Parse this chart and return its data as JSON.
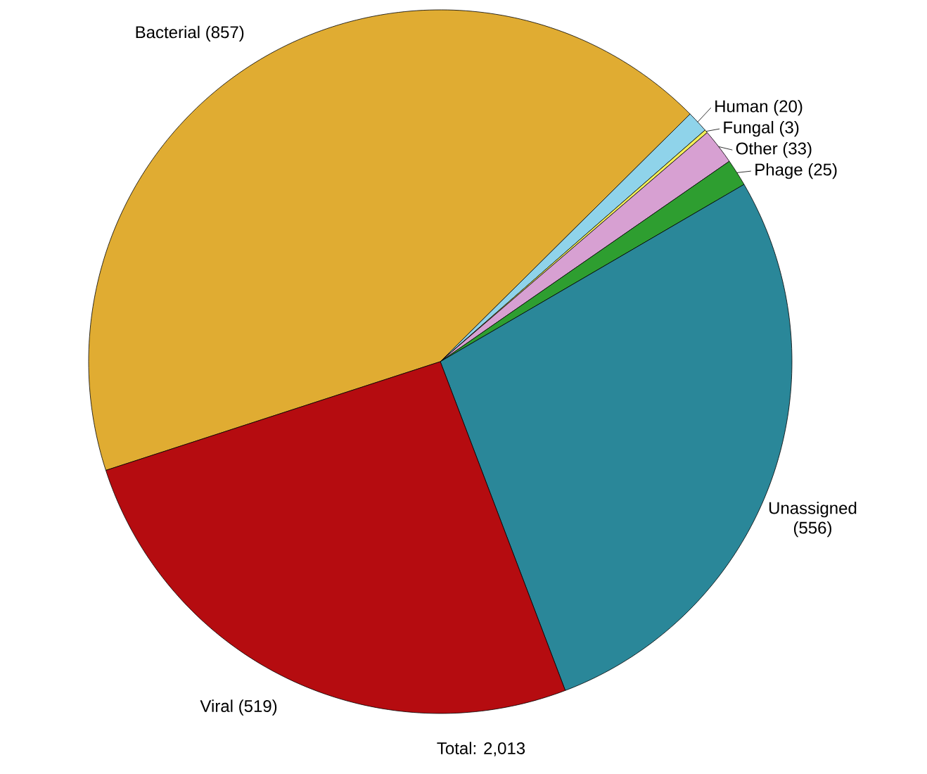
{
  "chart_data": {
    "type": "pie",
    "categories": [
      "Bacterial",
      "Human",
      "Fungal",
      "Other",
      "Phage",
      "Unassigned",
      "Viral"
    ],
    "values": [
      857,
      20,
      3,
      33,
      25,
      556,
      519
    ],
    "colors": [
      "#e0ac32",
      "#8fd3ea",
      "#f2ee5a",
      "#d7a0d2",
      "#2e9e30",
      "#2a8799",
      "#b50c10"
    ],
    "value_labels": [
      "(857)",
      "(20)",
      "(3)",
      "(33)",
      "(25)",
      "(556)",
      "(519)"
    ],
    "annotations": [
      "Total: 2,013"
    ]
  }
}
